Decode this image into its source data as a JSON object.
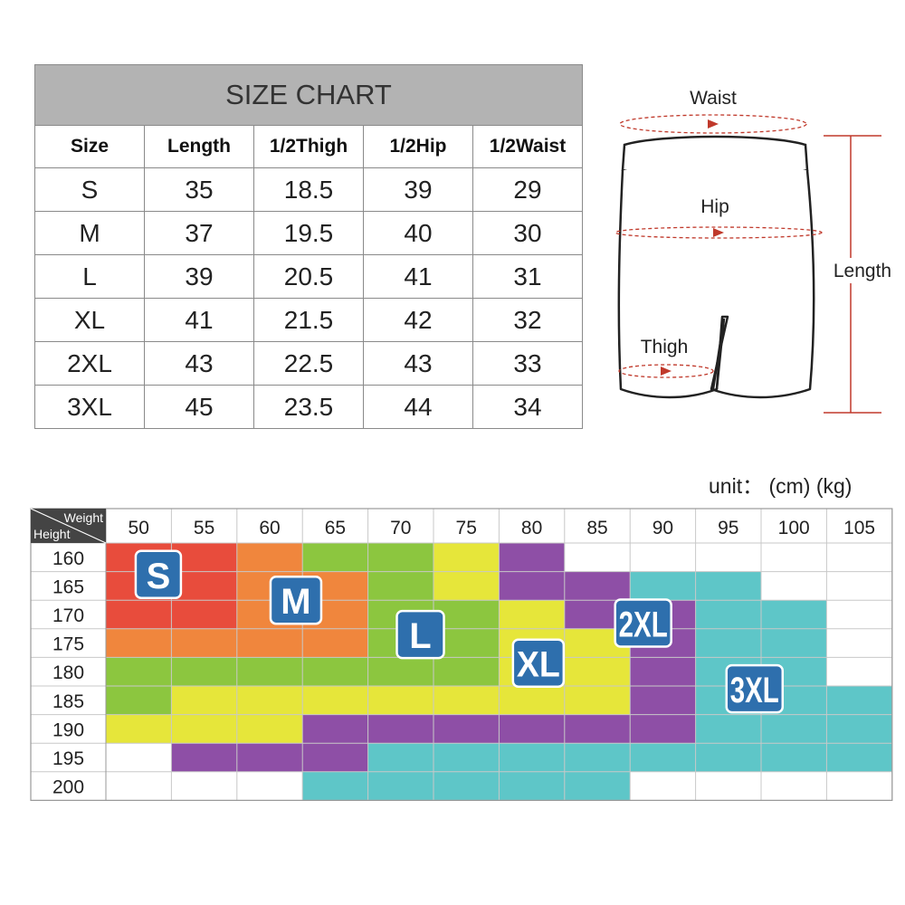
{
  "size_chart": {
    "title": "SIZE CHART",
    "headers": [
      "Size",
      "Length",
      "1/2Thigh",
      "1/2Hip",
      "1/2Waist"
    ],
    "rows": [
      [
        "S",
        "35",
        "18.5",
        "39",
        "29"
      ],
      [
        "M",
        "37",
        "19.5",
        "40",
        "30"
      ],
      [
        "L",
        "39",
        "20.5",
        "41",
        "31"
      ],
      [
        "XL",
        "41",
        "21.5",
        "42",
        "32"
      ],
      [
        "2XL",
        "43",
        "22.5",
        "43",
        "33"
      ],
      [
        "3XL",
        "45",
        "23.5",
        "44",
        "34"
      ]
    ]
  },
  "diagram": {
    "waist": "Waist",
    "hip": "Hip",
    "thigh": "Thigh",
    "length": "Length"
  },
  "fit_chart": {
    "unit_label": "unit： (cm) (kg)",
    "corner_top": "Weight",
    "corner_bottom": "Height",
    "weights": [
      "50",
      "55",
      "60",
      "65",
      "70",
      "75",
      "80",
      "85",
      "90",
      "95",
      "100",
      "105"
    ],
    "heights": [
      "160",
      "165",
      "170",
      "175",
      "180",
      "185",
      "190",
      "195",
      "200"
    ],
    "colors": {
      "S": "#e84c3c",
      "M": "#f0863d",
      "L": "#8cc63f",
      "XL": "#e6e63a",
      "2XL": "#8e4fa6",
      "3XL": "#5ec6c8",
      "label_bg": "#2e6fad",
      "grid_line": "#c8c8c8",
      "empty": "#ffffff"
    },
    "size_labels": [
      "S",
      "M",
      "L",
      "XL",
      "2XL",
      "3XL"
    ]
  },
  "chart_data": {
    "type": "heatmap",
    "xlabel": "Weight",
    "ylabel": "Height",
    "x": [
      "50",
      "55",
      "60",
      "65",
      "70",
      "75",
      "80",
      "85",
      "90",
      "95",
      "100",
      "105"
    ],
    "y": [
      "160",
      "165",
      "170",
      "175",
      "180",
      "185",
      "190",
      "195",
      "200"
    ],
    "units": "unit： (cm) (kg)",
    "grid": [
      [
        "S",
        "S",
        "M",
        "L",
        "L",
        "XL",
        "2XL",
        "",
        "",
        "",
        "",
        ""
      ],
      [
        "S",
        "S",
        "M",
        "M",
        "L",
        "XL",
        "2XL",
        "2XL",
        "3XL",
        "3XL",
        "",
        ""
      ],
      [
        "S",
        "S",
        "M",
        "M",
        "L",
        "L",
        "XL",
        "2XL",
        "2XL",
        "3XL",
        "3XL",
        ""
      ],
      [
        "M",
        "M",
        "M",
        "M",
        "L",
        "L",
        "XL",
        "XL",
        "2XL",
        "3XL",
        "3XL",
        ""
      ],
      [
        "L",
        "L",
        "L",
        "L",
        "L",
        "L",
        "XL",
        "XL",
        "2XL",
        "3XL",
        "3XL",
        ""
      ],
      [
        "L",
        "XL",
        "XL",
        "XL",
        "XL",
        "XL",
        "XL",
        "XL",
        "2XL",
        "3XL",
        "3XL",
        "3XL"
      ],
      [
        "XL",
        "XL",
        "XL",
        "2XL",
        "2XL",
        "2XL",
        "2XL",
        "2XL",
        "2XL",
        "3XL",
        "3XL",
        "3XL"
      ],
      [
        "",
        "2XL",
        "2XL",
        "2XL",
        "3XL",
        "3XL",
        "3XL",
        "3XL",
        "3XL",
        "3XL",
        "3XL",
        "3XL"
      ],
      [
        "",
        "",
        "",
        "3XL",
        "3XL",
        "3XL",
        "3XL",
        "3XL",
        "",
        "",
        "",
        ""
      ]
    ],
    "legend": [
      "S",
      "M",
      "L",
      "XL",
      "2XL",
      "3XL"
    ]
  }
}
